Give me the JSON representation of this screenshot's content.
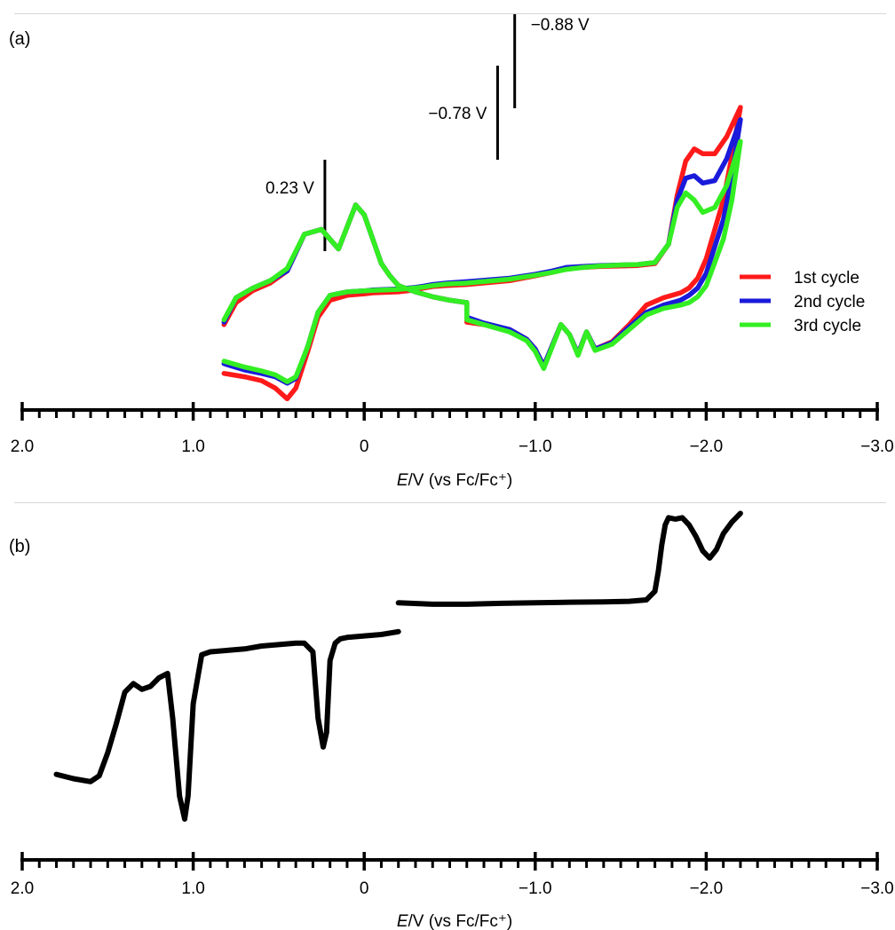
{
  "colors": {
    "cycle1": "#ff1a1a",
    "cycle2": "#1a1adb",
    "cycle3": "#33ee22",
    "dpv": "#000000",
    "axis": "#000000"
  },
  "chart_data": [
    {
      "type": "line",
      "panel_label": "(a)",
      "title": "",
      "xlabel_italic": "E",
      "xlabel_rest": "/V (vs Fc/Fc⁺)",
      "ylabel": "",
      "xlim": [
        2.0,
        -3.0
      ],
      "x_reversed": true,
      "xtick_labels": [
        "2.0",
        "1.0",
        "0",
        "−1.0",
        "−2.0",
        "−3.0"
      ],
      "xtick_values": [
        2.0,
        1.0,
        0,
        -1.0,
        -2.0,
        -3.0
      ],
      "minor_tick_step": 0.1,
      "grid": false,
      "y_axis_shown": false,
      "legend_position": "right",
      "annotations": [
        {
          "text": "0.23 V",
          "x": 0.23
        },
        {
          "text": "−0.78 V",
          "x": -0.78
        },
        {
          "text": "−0.88 V",
          "x": -0.88
        }
      ],
      "series": [
        {
          "name": "1st cycle",
          "color_key": "cycle1",
          "x": [
            0.82,
            0.7,
            0.6,
            0.52,
            0.45,
            0.4,
            0.33,
            0.27,
            0.2,
            0.1,
            0.0,
            -0.05,
            -0.2,
            -0.3,
            -0.35,
            -0.4,
            -0.48,
            -0.6,
            -0.85,
            -1.0,
            -1.1,
            -1.18,
            -1.28,
            -1.38,
            -1.5,
            -1.6,
            -1.7,
            -1.78,
            -1.83,
            -1.88,
            -1.93,
            -1.98,
            -2.05,
            -2.12,
            -2.2,
            -2.15,
            -2.1,
            -2.0,
            -1.95,
            -1.9,
            -1.85,
            -1.75,
            -1.65,
            -1.55,
            -1.45,
            -1.35,
            -1.3,
            -1.25,
            -1.2,
            -1.15,
            -1.05,
            -1.0,
            -0.95,
            -0.85,
            -0.7,
            -0.6,
            -0.6,
            -0.5,
            -0.4,
            -0.3,
            -0.2,
            -0.15,
            -0.1,
            0.0,
            0.05,
            0.15,
            0.25,
            0.35,
            0.45,
            0.55,
            0.65,
            0.75,
            0.82
          ],
          "y": [
            0.55,
            0.48,
            0.4,
            0.25,
            0.03,
            0.25,
            1.0,
            1.7,
            2.05,
            2.15,
            2.18,
            2.2,
            2.22,
            2.26,
            2.3,
            2.33,
            2.35,
            2.37,
            2.45,
            2.55,
            2.62,
            2.7,
            2.72,
            2.74,
            2.75,
            2.76,
            2.8,
            3.2,
            4.2,
            4.9,
            5.15,
            5.05,
            5.05,
            5.4,
            6.0,
            5.0,
            4.1,
            2.9,
            2.5,
            2.3,
            2.2,
            2.1,
            1.95,
            1.55,
            1.2,
            1.05,
            1.4,
            0.95,
            1.35,
            1.55,
            0.7,
            1.05,
            1.25,
            1.45,
            1.55,
            1.6,
            2.0,
            2.05,
            2.12,
            2.22,
            2.35,
            2.55,
            2.8,
            3.8,
            4.0,
            3.1,
            3.5,
            3.4,
            2.65,
            2.4,
            2.25,
            2.0,
            1.55
          ]
        },
        {
          "name": "2nd cycle",
          "color_key": "cycle2",
          "x": [
            0.82,
            0.7,
            0.6,
            0.52,
            0.45,
            0.4,
            0.33,
            0.27,
            0.2,
            0.1,
            0.0,
            -0.05,
            -0.2,
            -0.3,
            -0.35,
            -0.4,
            -0.48,
            -0.6,
            -0.85,
            -1.0,
            -1.1,
            -1.18,
            -1.28,
            -1.38,
            -1.5,
            -1.6,
            -1.7,
            -1.78,
            -1.83,
            -1.88,
            -1.93,
            -1.98,
            -2.05,
            -2.12,
            -2.2,
            -2.15,
            -2.1,
            -2.0,
            -1.95,
            -1.9,
            -1.85,
            -1.75,
            -1.65,
            -1.55,
            -1.45,
            -1.35,
            -1.3,
            -1.25,
            -1.2,
            -1.15,
            -1.05,
            -1.0,
            -0.95,
            -0.85,
            -0.7,
            -0.6,
            -0.6,
            -0.5,
            -0.4,
            -0.3,
            -0.2,
            -0.15,
            -0.1,
            0.0,
            0.05,
            0.15,
            0.25,
            0.35,
            0.45,
            0.55,
            0.65,
            0.75,
            0.82
          ],
          "y": [
            0.75,
            0.62,
            0.55,
            0.48,
            0.35,
            0.45,
            1.1,
            1.8,
            2.15,
            2.22,
            2.24,
            2.26,
            2.28,
            2.31,
            2.34,
            2.37,
            2.4,
            2.43,
            2.5,
            2.58,
            2.65,
            2.72,
            2.74,
            2.76,
            2.77,
            2.78,
            2.82,
            3.2,
            4.1,
            4.55,
            4.6,
            4.45,
            4.5,
            4.95,
            5.75,
            4.6,
            3.7,
            2.6,
            2.3,
            2.15,
            2.05,
            1.95,
            1.8,
            1.5,
            1.18,
            1.05,
            1.4,
            0.95,
            1.35,
            1.55,
            0.7,
            1.05,
            1.25,
            1.45,
            1.58,
            1.7,
            2.0,
            2.05,
            2.12,
            2.22,
            2.35,
            2.55,
            2.8,
            3.8,
            4.0,
            3.1,
            3.5,
            3.4,
            2.65,
            2.45,
            2.3,
            2.1,
            1.6
          ]
        },
        {
          "name": "3rd cycle",
          "color_key": "cycle3",
          "x": [
            0.82,
            0.7,
            0.6,
            0.52,
            0.45,
            0.4,
            0.33,
            0.27,
            0.2,
            0.1,
            0.0,
            -0.05,
            -0.2,
            -0.3,
            -0.35,
            -0.4,
            -0.48,
            -0.6,
            -0.85,
            -1.0,
            -1.1,
            -1.18,
            -1.28,
            -1.38,
            -1.5,
            -1.6,
            -1.7,
            -1.78,
            -1.83,
            -1.88,
            -1.93,
            -1.98,
            -2.05,
            -2.12,
            -2.2,
            -2.15,
            -2.1,
            -2.0,
            -1.95,
            -1.9,
            -1.85,
            -1.75,
            -1.65,
            -1.55,
            -1.45,
            -1.35,
            -1.3,
            -1.25,
            -1.2,
            -1.15,
            -1.05,
            -1.0,
            -0.95,
            -0.85,
            -0.7,
            -0.6,
            -0.6,
            -0.5,
            -0.4,
            -0.3,
            -0.2,
            -0.15,
            -0.1,
            0.0,
            0.05,
            0.15,
            0.25,
            0.35,
            0.45,
            0.55,
            0.65,
            0.75,
            0.82
          ],
          "y": [
            0.8,
            0.68,
            0.6,
            0.52,
            0.38,
            0.48,
            1.1,
            1.8,
            2.15,
            2.22,
            2.24,
            2.25,
            2.27,
            2.3,
            2.32,
            2.35,
            2.38,
            2.4,
            2.48,
            2.56,
            2.62,
            2.68,
            2.72,
            2.75,
            2.77,
            2.78,
            2.82,
            3.2,
            3.95,
            4.25,
            4.1,
            3.85,
            3.95,
            4.4,
            5.3,
            4.1,
            3.3,
            2.35,
            2.12,
            2.0,
            1.95,
            1.88,
            1.75,
            1.45,
            1.15,
            1.02,
            1.4,
            0.92,
            1.35,
            1.55,
            0.65,
            1.0,
            1.22,
            1.4,
            1.55,
            1.65,
            2.0,
            2.05,
            2.12,
            2.22,
            2.35,
            2.55,
            2.8,
            3.8,
            4.0,
            3.1,
            3.5,
            3.4,
            2.7,
            2.45,
            2.3,
            2.1,
            1.65
          ]
        }
      ]
    },
    {
      "type": "line",
      "panel_label": "(b)",
      "title": "",
      "xlabel_italic": "E",
      "xlabel_rest": "/V (vs Fc/Fc⁺)",
      "ylabel": "",
      "xlim": [
        2.0,
        -3.0
      ],
      "x_reversed": true,
      "xtick_labels": [
        "2.0",
        "1.0",
        "0",
        "−1.0",
        "−2.0",
        "−3.0"
      ],
      "xtick_values": [
        2.0,
        1.0,
        0,
        -1.0,
        -2.0,
        -3.0
      ],
      "minor_tick_step": 0.1,
      "grid": false,
      "y_axis_shown": false,
      "legend_position": "none",
      "series": [
        {
          "name": "",
          "color_key": "dpv",
          "x": [
            1.8,
            1.7,
            1.6,
            1.55,
            1.5,
            1.45,
            1.4,
            1.35,
            1.3,
            1.25,
            1.2,
            1.15,
            1.12,
            1.08,
            1.05,
            1.03,
            1.0,
            0.95,
            0.9,
            0.8,
            0.7,
            0.6,
            0.5,
            0.4,
            0.35,
            0.3,
            0.27,
            0.24,
            0.22,
            0.2,
            0.17,
            0.14,
            0.1,
            0.0,
            -0.1,
            -0.2
          ],
          "y": [
            1.55,
            1.4,
            1.3,
            1.5,
            2.3,
            3.3,
            4.4,
            4.7,
            4.5,
            4.6,
            4.9,
            5.05,
            3.5,
            0.8,
            0.0,
            0.8,
            4.0,
            5.7,
            5.8,
            5.85,
            5.9,
            6.0,
            6.05,
            6.1,
            6.1,
            5.8,
            3.5,
            2.5,
            3.0,
            5.5,
            6.1,
            6.25,
            6.3,
            6.35,
            6.4,
            6.5
          ]
        },
        {
          "name": "",
          "color_key": "dpv",
          "x": [
            -0.2,
            -0.4,
            -0.6,
            -0.8,
            -1.0,
            -1.2,
            -1.4,
            -1.55,
            -1.65,
            -1.7,
            -1.72,
            -1.74,
            -1.76,
            -1.78,
            -1.82,
            -1.86,
            -1.9,
            -1.94,
            -1.98,
            -2.02,
            -2.06,
            -2.1,
            -2.15,
            -2.2
          ],
          "y": [
            7.5,
            7.45,
            7.45,
            7.48,
            7.5,
            7.52,
            7.53,
            7.55,
            7.6,
            7.9,
            8.6,
            9.5,
            10.2,
            10.45,
            10.4,
            10.45,
            10.2,
            9.8,
            9.3,
            9.05,
            9.35,
            9.9,
            10.3,
            10.6
          ]
        }
      ]
    }
  ]
}
